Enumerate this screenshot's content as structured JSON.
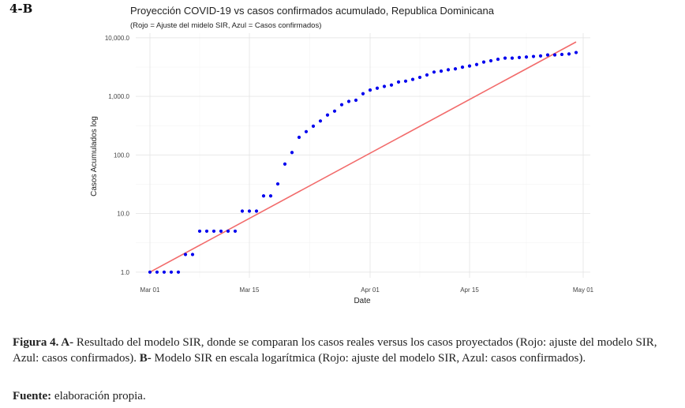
{
  "panel_label": "4-B",
  "chart_data": {
    "type": "scatter",
    "title": "Proyección COVID-19 vs casos confirmados acumulado, Republica Dominicana",
    "subtitle": "(Rojo = Ajuste del midelo SIR, Azul = Casos confirmados)",
    "xlabel": "Date",
    "ylabel": "Casos Acumulados log",
    "y_scale": "log10",
    "ylim": [
      0.8,
      12000
    ],
    "xlim": [
      "2020-02-28",
      "2020-05-02"
    ],
    "x_ticks": [
      {
        "date": "2020-03-01",
        "label": "Mar 01"
      },
      {
        "date": "2020-03-15",
        "label": "Mar 15"
      },
      {
        "date": "2020-04-01",
        "label": "Apr 01"
      },
      {
        "date": "2020-04-15",
        "label": "Apr 15"
      },
      {
        "date": "2020-05-01",
        "label": "May 01"
      }
    ],
    "y_ticks": [
      {
        "value": 1,
        "label": "1.0"
      },
      {
        "value": 10,
        "label": "10.0"
      },
      {
        "value": 100,
        "label": "100.0"
      },
      {
        "value": 1000,
        "label": "1,000.0"
      },
      {
        "value": 10000,
        "label": "10,000.0"
      }
    ],
    "grid": true,
    "series": [
      {
        "color": "#0000ee",
        "style": "points",
        "x": [
          "2020-03-01",
          "2020-03-02",
          "2020-03-03",
          "2020-03-04",
          "2020-03-05",
          "2020-03-06",
          "2020-03-07",
          "2020-03-08",
          "2020-03-09",
          "2020-03-10",
          "2020-03-11",
          "2020-03-12",
          "2020-03-13",
          "2020-03-14",
          "2020-03-15",
          "2020-03-16",
          "2020-03-17",
          "2020-03-18",
          "2020-03-19",
          "2020-03-20",
          "2020-03-21",
          "2020-03-22",
          "2020-03-23",
          "2020-03-24",
          "2020-03-25",
          "2020-03-26",
          "2020-03-27",
          "2020-03-28",
          "2020-03-29",
          "2020-03-30",
          "2020-03-31",
          "2020-04-01",
          "2020-04-02",
          "2020-04-03",
          "2020-04-04",
          "2020-04-05",
          "2020-04-06",
          "2020-04-07",
          "2020-04-08",
          "2020-04-09",
          "2020-04-10",
          "2020-04-11",
          "2020-04-12",
          "2020-04-13",
          "2020-04-14",
          "2020-04-15",
          "2020-04-16",
          "2020-04-17",
          "2020-04-18",
          "2020-04-19",
          "2020-04-20",
          "2020-04-21",
          "2020-04-22",
          "2020-04-23",
          "2020-04-24",
          "2020-04-25",
          "2020-04-26",
          "2020-04-27",
          "2020-04-28",
          "2020-04-29",
          "2020-04-30"
        ],
        "y": [
          1,
          1,
          1,
          1,
          1,
          2,
          2,
          5,
          5,
          5,
          5,
          5,
          5,
          11,
          11,
          11,
          20,
          20,
          32,
          70,
          110,
          200,
          250,
          310,
          380,
          480,
          560,
          720,
          820,
          860,
          1110,
          1280,
          1380,
          1480,
          1560,
          1760,
          1820,
          1950,
          2110,
          2320,
          2600,
          2700,
          2850,
          2950,
          3150,
          3300,
          3500,
          3850,
          4050,
          4300,
          4500,
          4500,
          4600,
          4700,
          4800,
          4900,
          5100,
          5100,
          5200,
          5300,
          5600
        ]
      },
      {
        "color": "#f26b6b",
        "style": "line",
        "x": [
          "2020-03-01",
          "2020-04-30"
        ],
        "y": [
          1.0,
          8500
        ]
      }
    ]
  },
  "caption": {
    "label": "Figura 4. A-",
    "text_a": " Resultado del modelo SIR, donde se comparan los casos reales versus los casos proyectados (Rojo: ajuste del modelo SIR, Azul: casos confirmados). ",
    "label_b": "B-",
    "text_b": " Modelo SIR en escala logarítmica (Rojo: ajuste del modelo SIR, Azul: casos confirmados)."
  },
  "source": {
    "label": "Fuente:",
    "text": " elaboración propia."
  }
}
